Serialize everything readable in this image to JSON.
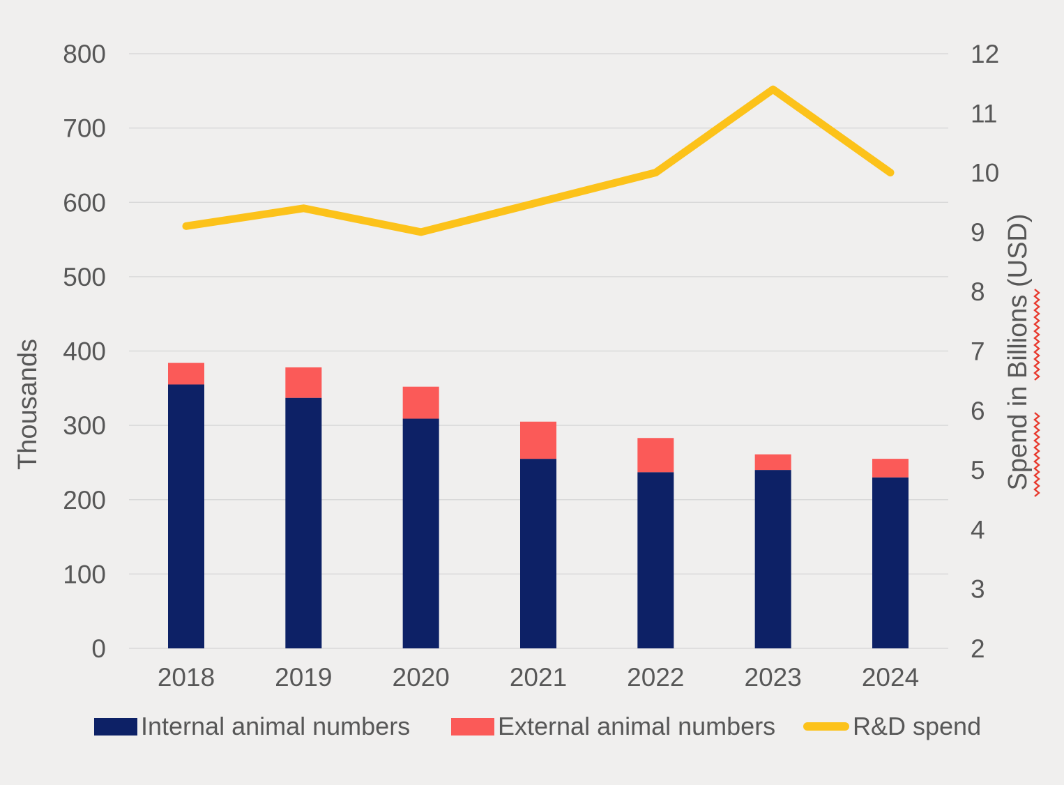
{
  "chart_data": {
    "type": "combo-stacked-bar-line",
    "title": "",
    "categories": [
      "2018",
      "2019",
      "2020",
      "2021",
      "2022",
      "2023",
      "2024"
    ],
    "bar_series": [
      {
        "name": "Internal animal numbers",
        "color": "#0D2166",
        "axis": "left",
        "values": [
          355,
          337,
          309,
          255,
          237,
          240,
          230
        ]
      },
      {
        "name": "External animal numbers",
        "color": "#FB5A58",
        "axis": "left",
        "values": [
          29,
          41,
          43,
          50,
          46,
          21,
          25
        ]
      }
    ],
    "line_series": [
      {
        "name": "R&D spend",
        "color": "#FCC21A",
        "axis": "right",
        "values": [
          9.1,
          9.4,
          9.0,
          9.5,
          10.0,
          11.4,
          10.0
        ]
      }
    ],
    "left_axis": {
      "label": "Thousands",
      "min": 0,
      "max": 800,
      "step": 100,
      "ticks": [
        800,
        700,
        600,
        500,
        400,
        300,
        200,
        100,
        0
      ]
    },
    "right_axis": {
      "label": "Spend in Billions (USD)",
      "min": 2,
      "max": 12,
      "step": 1,
      "ticks": [
        12,
        11,
        10,
        9,
        8,
        7,
        6,
        5,
        4,
        3,
        2
      ]
    },
    "grid": true,
    "legend_position": "bottom",
    "notes": "red spellcheck-style squiggle shown along right axis label words Spend and Billions"
  },
  "colors": {
    "background": "#F0EFEE",
    "gridline": "#D9D9D9",
    "axis_text": "#575757",
    "internal_bar": "#0D2166",
    "external_bar": "#FB5A58",
    "rd_line": "#FCC21A",
    "spellcheck_squiggle": "#E8392D"
  },
  "legend": {
    "items": [
      {
        "label": "Internal animal numbers",
        "swatch": "bar",
        "color": "#0D2166"
      },
      {
        "label": "External animal numbers",
        "swatch": "bar",
        "color": "#FB5A58"
      },
      {
        "label": "R&D spend",
        "swatch": "line",
        "color": "#FCC21A"
      }
    ]
  }
}
